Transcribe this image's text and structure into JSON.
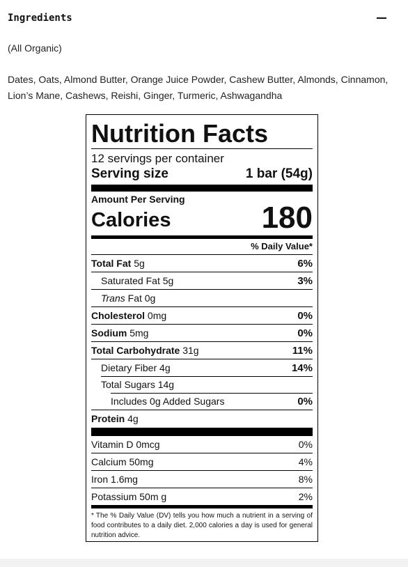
{
  "accordion": {
    "title": "Ingredients",
    "note": "(All Organic)",
    "ingredients": "Dates, Oats, Almond Butter, Orange Juice Powder, Cashew Butter, Almonds, Cinnamon, Lion’s Mane, Cashews, Reishi, Ginger, Turmeric, Ashwagandha",
    "toggle_icon": "minus-icon"
  },
  "label": {
    "title": "Nutrition Facts",
    "servings": "12 servings per container",
    "serving_size_label": "Serving size",
    "serving_size_value": "1 bar (54g)",
    "amount_per_serving": "Amount Per Serving",
    "calories_label": "Calories",
    "calories_value": "180",
    "dv_header": "% Daily Value*",
    "nutrients": [
      {
        "name": "Total Fat",
        "amount": "5g",
        "dv": "6%"
      },
      {
        "name": "Saturated Fat",
        "amount": "5g",
        "dv": "3%"
      },
      {
        "name": "Trans",
        "amount": "Fat 0g",
        "dv": ""
      },
      {
        "name": "Cholesterol",
        "amount": "0mg",
        "dv": "0%"
      },
      {
        "name": "Sodium",
        "amount": "5mg",
        "dv": "0%"
      },
      {
        "name": "Total Carbohydrate",
        "amount": "31g",
        "dv": "11%"
      },
      {
        "name": "Dietary Fiber",
        "amount": "4g",
        "dv": "14%"
      },
      {
        "name": "Total Sugars",
        "amount": "14g",
        "dv": ""
      },
      {
        "name": "Includes 0g Added Sugars",
        "amount": "",
        "dv": "0%"
      },
      {
        "name": "Protein",
        "amount": "4g",
        "dv": ""
      }
    ],
    "vitamins": [
      {
        "text": "Vitamin D 0mcg",
        "dv": "0%"
      },
      {
        "text": "Calcium 50mg",
        "dv": "4%"
      },
      {
        "text": "Iron 1.6mg",
        "dv": "8%"
      },
      {
        "text": "Potassium 50m g",
        "dv": "2%"
      }
    ],
    "footnote_star": "*",
    "footnote": "The % Daily Value (DV) tells you how much a nutrient in a serving of food contributes to a daily diet. 2,000 calories a day is used for general nutrition advice."
  }
}
